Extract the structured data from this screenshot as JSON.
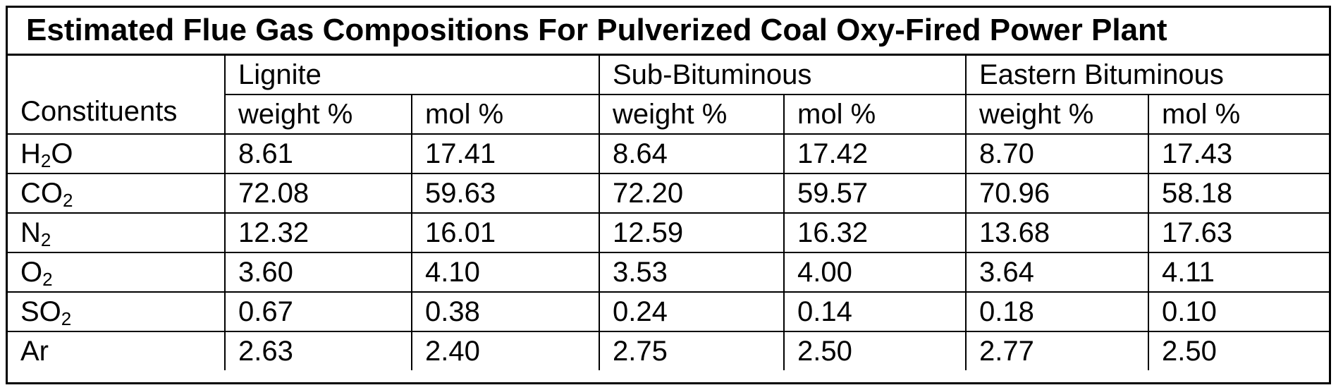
{
  "title": "Estimated Flue Gas Compositions For Pulverized Coal Oxy-Fired Power Plant",
  "header": {
    "constituents_label": "Constituents",
    "groups": [
      "Lignite",
      "Sub-Bituminous",
      "Eastern Bituminous"
    ],
    "subcolumns": [
      "weight %",
      "mol %",
      "weight %",
      "mol %",
      "weight %",
      "mol %"
    ]
  },
  "rows": [
    {
      "base": "H",
      "sub": "2",
      "tail": "O",
      "values": [
        "8.61",
        "17.41",
        "8.64",
        "17.42",
        "8.70",
        "17.43"
      ]
    },
    {
      "base": "CO",
      "sub": "2",
      "tail": "",
      "values": [
        "72.08",
        "59.63",
        "72.20",
        "59.57",
        "70.96",
        "58.18"
      ]
    },
    {
      "base": "N",
      "sub": "2",
      "tail": "",
      "values": [
        "12.32",
        "16.01",
        "12.59",
        "16.32",
        "13.68",
        "17.63"
      ]
    },
    {
      "base": "O",
      "sub": "2",
      "tail": "",
      "values": [
        "3.60",
        "4.10",
        "3.53",
        "4.00",
        "3.64",
        "4.11"
      ]
    },
    {
      "base": "SO",
      "sub": "2",
      "tail": "",
      "values": [
        "0.67",
        "0.38",
        "0.24",
        "0.14",
        "0.18",
        "0.10"
      ]
    },
    {
      "base": "Ar",
      "sub": "",
      "tail": "",
      "values": [
        "2.63",
        "2.40",
        "2.75",
        "2.50",
        "2.77",
        "2.50"
      ]
    }
  ]
}
